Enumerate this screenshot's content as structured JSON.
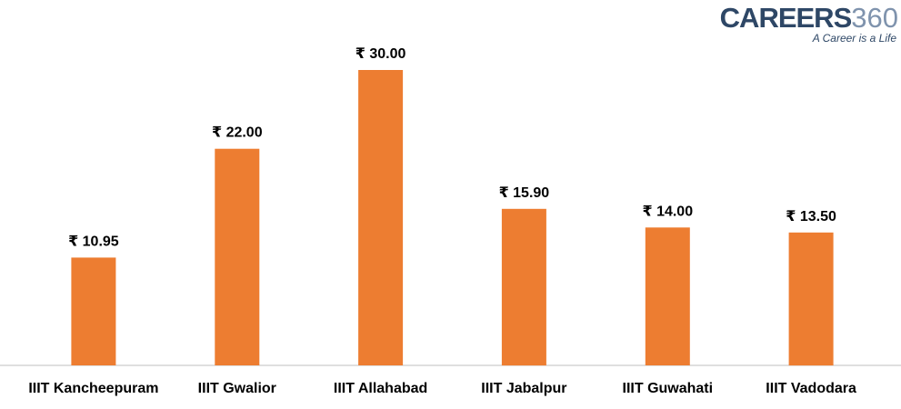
{
  "logo": {
    "name": "CAREERS",
    "number": "360",
    "tagline": "A Career is a Life"
  },
  "colors": {
    "bar": "#ed7d31",
    "axis": "#bfbfbf",
    "text": "#000000"
  },
  "chart_data": {
    "type": "bar",
    "categories": [
      "IIIT Kancheepuram",
      "IIIT Gwalior",
      "IIIT Allahabad",
      "IIIT Jabalpur",
      "IIIT Guwahati",
      "IIIT Vadodara"
    ],
    "values": [
      10.95,
      22.0,
      30.0,
      15.9,
      14.0,
      13.5
    ],
    "data_labels": [
      "₹ 10.95",
      "₹ 22.00",
      "₹ 30.00",
      "₹ 15.90",
      "₹ 14.00",
      "₹ 13.50"
    ],
    "title": "",
    "xlabel": "",
    "ylabel": "",
    "ylim": [
      0,
      30
    ],
    "grid": false,
    "legend": "none"
  }
}
